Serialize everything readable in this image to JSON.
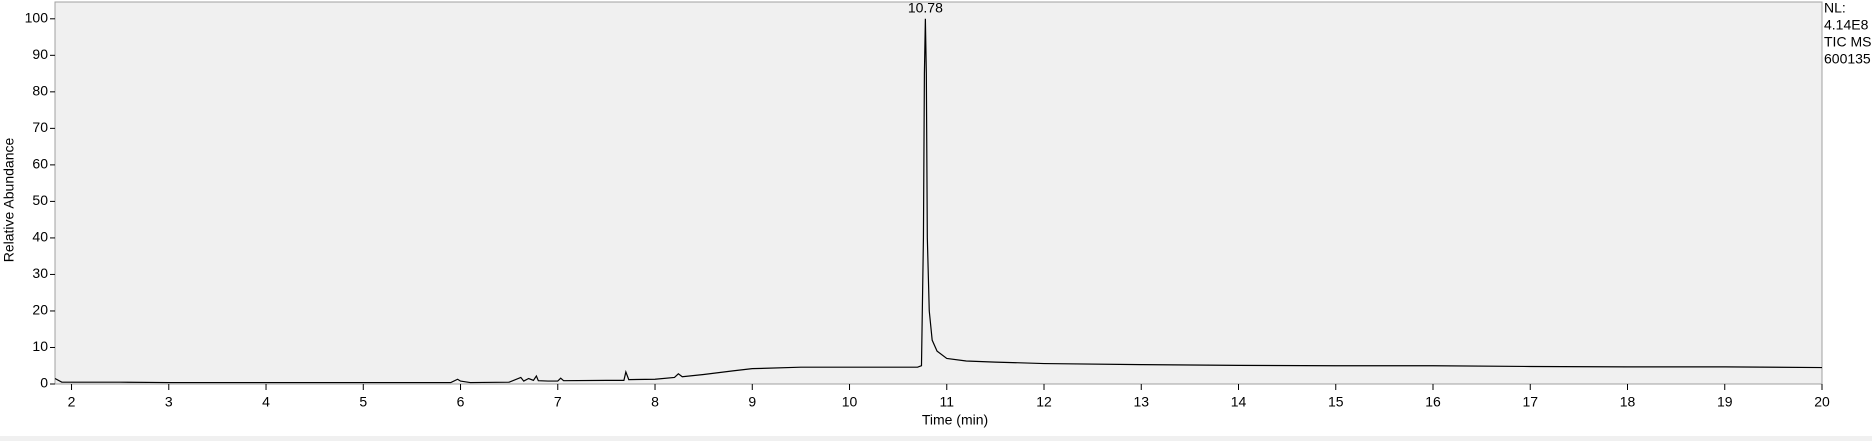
{
  "chart_data": {
    "type": "line",
    "xlabel": "Time (min)",
    "ylabel": "Relative Abundance",
    "info": [
      "NL:",
      "4.14E8",
      "TIC  MS",
      "600135"
    ],
    "peak_labels": [
      10.78
    ],
    "series": [
      {
        "name": "TIC",
        "color": "#000000",
        "x": [
          1.83,
          1.9,
          2.5,
          3,
          4,
          5,
          5.9,
          5.97,
          6.0,
          6.1,
          6.5,
          6.62,
          6.65,
          6.7,
          6.75,
          6.78,
          6.8,
          6.9,
          7.0,
          7.03,
          7.06,
          7.5,
          7.68,
          7.7,
          7.73,
          8.0,
          8.2,
          8.24,
          8.28,
          8.5,
          8.8,
          9.0,
          9.5,
          10,
          10.5,
          10.7,
          10.74,
          10.76,
          10.77,
          10.78,
          10.79,
          10.8,
          10.82,
          10.85,
          10.9,
          11,
          11.2,
          11.5,
          12,
          13,
          14,
          15,
          16,
          17,
          18,
          19,
          20
        ],
        "values": [
          1.5,
          0.5,
          0.5,
          0.4,
          0.4,
          0.4,
          0.4,
          1.3,
          0.8,
          0.4,
          0.5,
          1.8,
          0.8,
          1.5,
          1.0,
          2.2,
          0.9,
          0.8,
          0.8,
          1.6,
          0.9,
          1.0,
          1.0,
          3.3,
          1.2,
          1.3,
          1.8,
          2.8,
          2.0,
          2.6,
          3.6,
          4.2,
          4.6,
          4.6,
          4.6,
          4.6,
          5,
          40,
          85,
          100,
          85,
          40,
          20,
          12,
          9,
          7,
          6.3,
          6,
          5.6,
          5.3,
          5.1,
          5,
          5,
          4.8,
          4.7,
          4.7,
          4.5
        ]
      }
    ],
    "xlim": [
      1.83,
      20
    ],
    "ylim": [
      0,
      104.6
    ],
    "xticks": [
      2,
      3,
      4,
      5,
      6,
      7,
      8,
      9,
      10,
      11,
      12,
      13,
      14,
      15,
      16,
      17,
      18,
      19,
      20
    ],
    "yticks": [
      0,
      10,
      20,
      30,
      40,
      50,
      60,
      70,
      80,
      90,
      100
    ]
  }
}
